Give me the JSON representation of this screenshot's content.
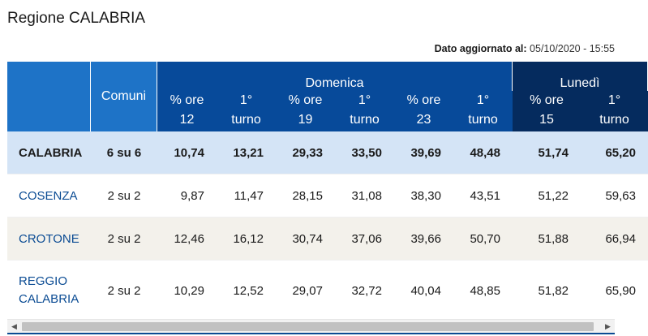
{
  "page": {
    "title": "Regione CALABRIA",
    "updated_label": "Dato aggiornato al:",
    "updated_value": "05/10/2020 - 15:55"
  },
  "table": {
    "comuni_header": "Comuni",
    "groups": [
      {
        "label": "Domenica"
      },
      {
        "label": "Lunedì"
      }
    ],
    "subheaders": [
      {
        "line1": "% ore",
        "line2": "12"
      },
      {
        "line1": "1°",
        "line2": "turno"
      },
      {
        "line1": "% ore",
        "line2": "19"
      },
      {
        "line1": "1°",
        "line2": "turno"
      },
      {
        "line1": "% ore",
        "line2": "23"
      },
      {
        "line1": "1°",
        "line2": "turno"
      },
      {
        "line1": "% ore",
        "line2": "15"
      },
      {
        "line1": "1°",
        "line2": "turno"
      }
    ],
    "rows": [
      {
        "name": "CALABRIA",
        "name2": "",
        "comuni": "6 su 6",
        "values": [
          "10,74",
          "13,21",
          "29,33",
          "33,50",
          "39,69",
          "48,48",
          "51,74",
          "65,20"
        ]
      },
      {
        "name": "COSENZA",
        "name2": "",
        "comuni": "2 su 2",
        "values": [
          "9,87",
          "11,47",
          "28,15",
          "31,08",
          "38,30",
          "43,51",
          "51,22",
          "59,63"
        ]
      },
      {
        "name": "CROTONE",
        "name2": "",
        "comuni": "2 su 2",
        "values": [
          "12,46",
          "16,12",
          "30,74",
          "37,06",
          "39,66",
          "50,70",
          "51,88",
          "66,94"
        ]
      },
      {
        "name": "REGGIO",
        "name2": "CALABRIA",
        "comuni": "2 su 2",
        "values": [
          "10,29",
          "12,52",
          "29,07",
          "32,72",
          "40,04",
          "48,85",
          "51,82",
          "65,90"
        ]
      }
    ]
  },
  "scrollbar": {
    "left_arrow": "◀",
    "right_arrow": "▶"
  },
  "colors": {
    "header_light": "#1e73c7",
    "header_domenica": "#074a9a",
    "header_lunedi": "#052b5e",
    "total_row": "#d4e4f6",
    "row_alt": "#f3f1eb",
    "link_text": "#0a4b93"
  }
}
